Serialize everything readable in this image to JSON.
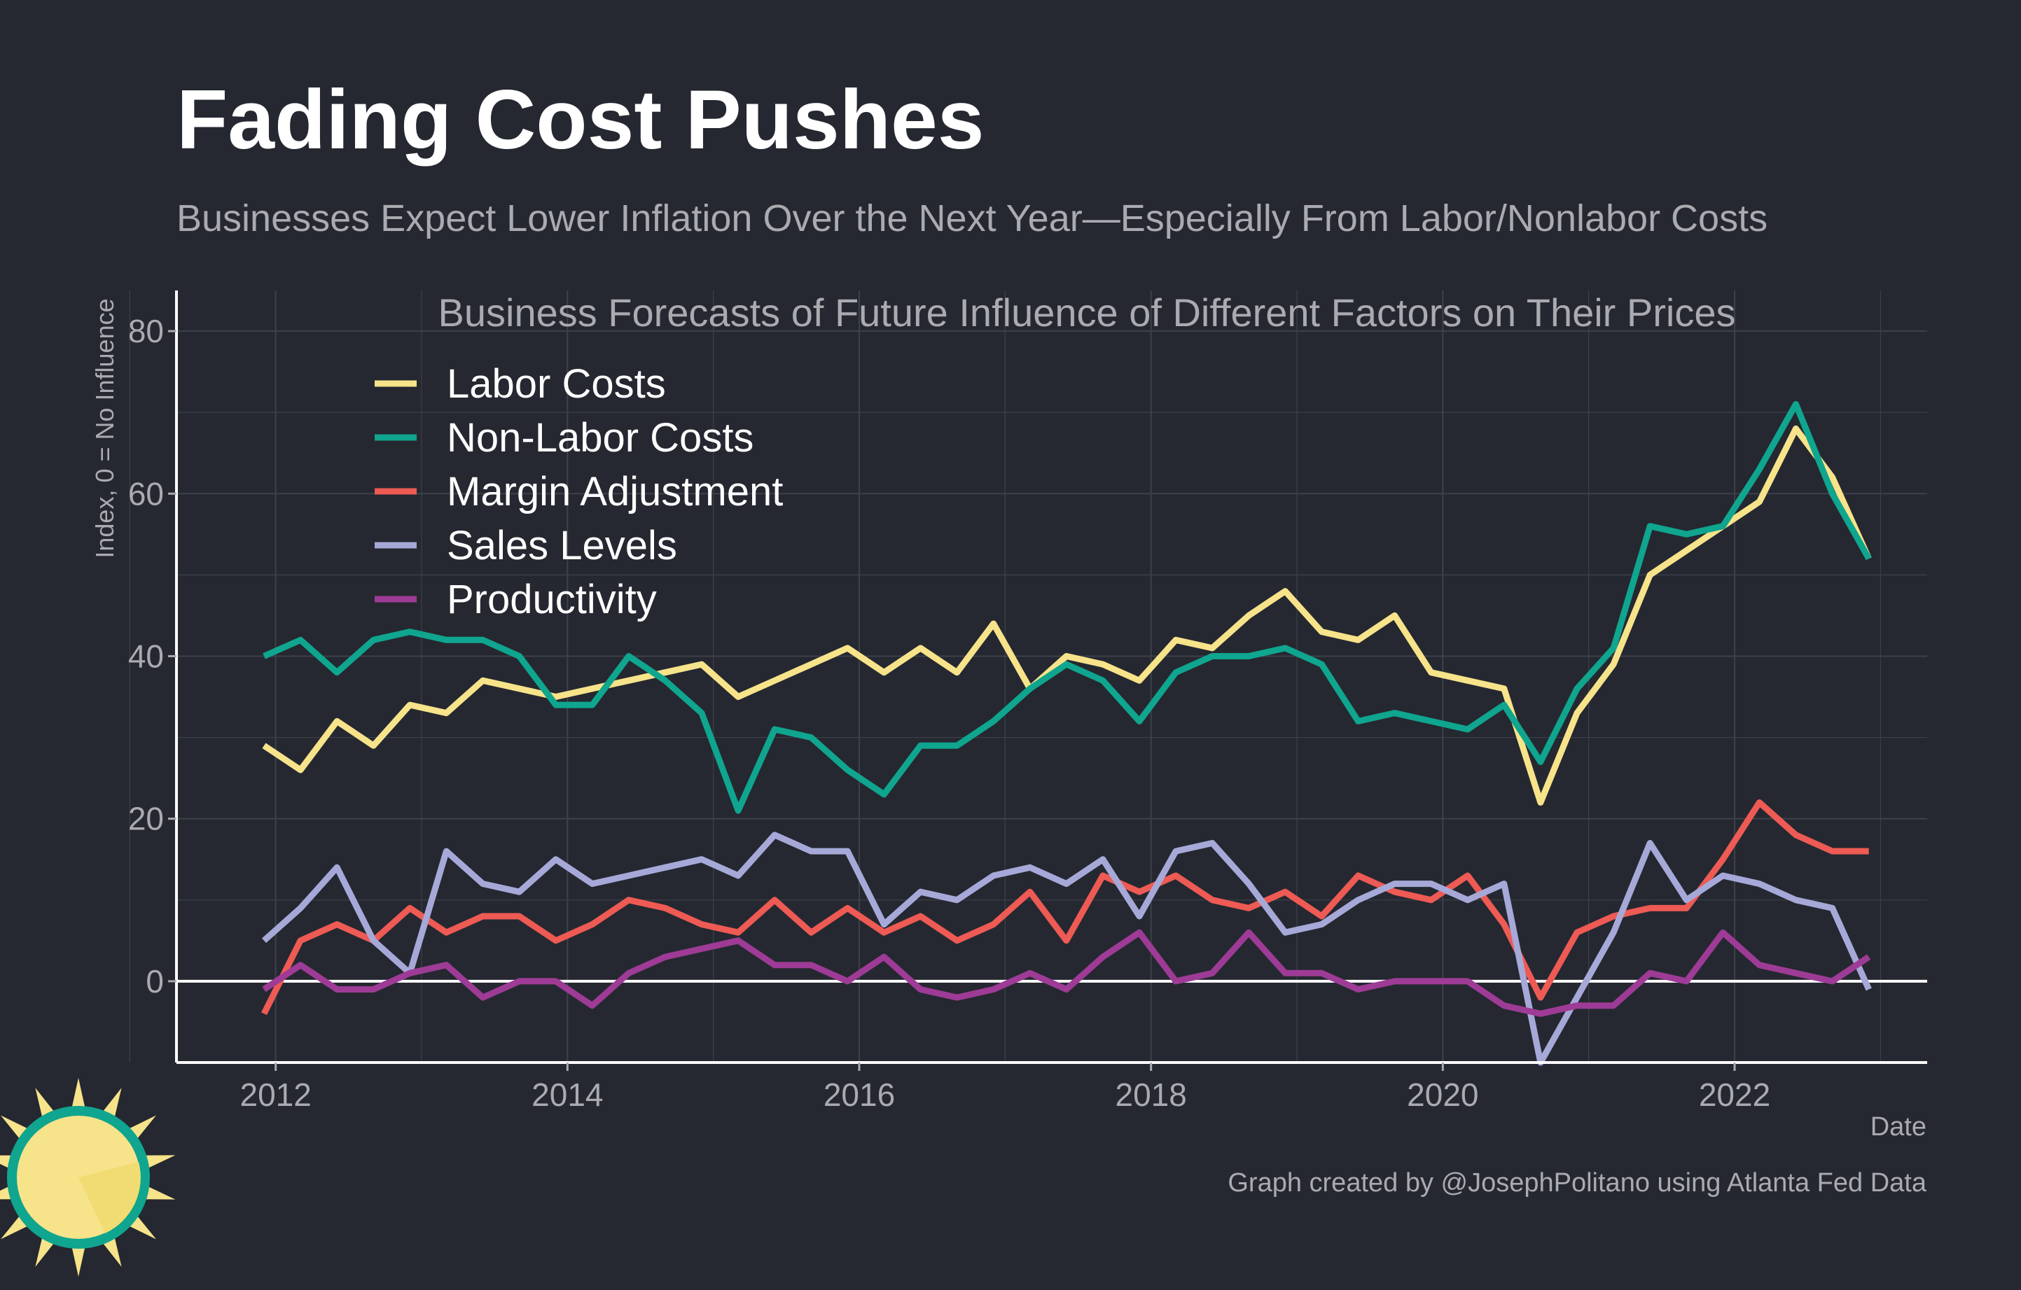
{
  "title": "Fading Cost Pushes",
  "subtitle": "Businesses Expect Lower Inflation Over the Next Year—Especially From Labor/Nonlabor Costs",
  "credit": "Graph created by @JosephPolitano using Atlanta Fed Data",
  "colors": {
    "background": "#252830",
    "grid": "#3d414a",
    "axis": "#ffffff",
    "title": "#ffffff",
    "muted_text": "#a9abb0",
    "logo_sun": "#f7e38a",
    "logo_ring": "#0fa58f"
  },
  "logo": {
    "icon": "sun-logo-icon"
  },
  "chart_data": {
    "type": "line",
    "title": "Business Forecasts of Future Influence of Different Factors on Their Prices",
    "xlabel": "Date",
    "ylabel": "Index, 0 = No Influence",
    "xlim": [
      2011.32,
      2023.32
    ],
    "ylim": [
      -10,
      85
    ],
    "x_ticks": [
      2012,
      2014,
      2016,
      2018,
      2020,
      2022
    ],
    "y_ticks": [
      0,
      20,
      40,
      60,
      80
    ],
    "zero_line": true,
    "grid": true,
    "legend_position": "top-left",
    "x": [
      2011.92,
      2012.17,
      2012.42,
      2012.67,
      2012.92,
      2013.17,
      2013.42,
      2013.67,
      2013.92,
      2014.17,
      2014.42,
      2014.67,
      2014.92,
      2015.17,
      2015.42,
      2015.67,
      2015.92,
      2016.17,
      2016.42,
      2016.67,
      2016.92,
      2017.17,
      2017.42,
      2017.67,
      2017.92,
      2018.17,
      2018.42,
      2018.67,
      2018.92,
      2019.17,
      2019.42,
      2019.67,
      2019.92,
      2020.17,
      2020.42,
      2020.67,
      2020.92,
      2021.17,
      2021.42,
      2021.67,
      2021.92,
      2022.17,
      2022.42,
      2022.67,
      2022.92
    ],
    "series": [
      {
        "name": "Labor Costs",
        "color": "#f7e38a",
        "values": [
          29,
          26,
          32,
          29,
          34,
          33,
          37,
          36,
          35,
          36,
          37,
          38,
          39,
          35,
          37,
          39,
          41,
          38,
          41,
          38,
          44,
          36,
          40,
          39,
          37,
          42,
          41,
          45,
          48,
          43,
          42,
          45,
          38,
          37,
          36,
          22,
          33,
          39,
          50,
          53,
          56,
          59,
          68,
          62,
          52
        ]
      },
      {
        "name": "Non-Labor Costs",
        "color": "#0fa58f",
        "values": [
          40,
          42,
          38,
          42,
          43,
          42,
          42,
          40,
          34,
          34,
          40,
          37,
          33,
          21,
          31,
          30,
          26,
          23,
          29,
          29,
          32,
          36,
          39,
          37,
          32,
          38,
          40,
          40,
          41,
          39,
          32,
          33,
          32,
          31,
          34,
          27,
          36,
          41,
          56,
          55,
          56,
          63,
          71,
          60,
          52
        ]
      },
      {
        "name": "Margin Adjustment",
        "color": "#ee5a54",
        "values": [
          -4,
          5,
          7,
          5,
          9,
          6,
          8,
          8,
          5,
          7,
          10,
          9,
          7,
          6,
          10,
          6,
          9,
          6,
          8,
          5,
          7,
          11,
          5,
          13,
          11,
          13,
          10,
          9,
          11,
          8,
          13,
          11,
          10,
          13,
          7,
          -2,
          6,
          8,
          9,
          9,
          15,
          22,
          18,
          16,
          16
        ]
      },
      {
        "name": "Sales Levels",
        "color": "#a6a9d8",
        "values": [
          5,
          9,
          14,
          5,
          1,
          16,
          12,
          11,
          15,
          12,
          13,
          14,
          15,
          13,
          18,
          16,
          16,
          7,
          11,
          10,
          13,
          14,
          12,
          15,
          8,
          16,
          17,
          12,
          6,
          7,
          10,
          12,
          12,
          10,
          12,
          -10,
          -2,
          6,
          17,
          10,
          13,
          12,
          10,
          9,
          -1
        ]
      },
      {
        "name": "Productivity",
        "color": "#9e3b96",
        "values": [
          -1,
          2,
          -1,
          -1,
          1,
          2,
          -2,
          0,
          0,
          -3,
          1,
          3,
          4,
          5,
          2,
          2,
          0,
          3,
          -1,
          -2,
          -1,
          1,
          -1,
          3,
          6,
          0,
          1,
          6,
          1,
          1,
          -1,
          0,
          0,
          0,
          -3,
          -4,
          -3,
          -3,
          1,
          0,
          6,
          2,
          1,
          0,
          3
        ]
      }
    ]
  }
}
